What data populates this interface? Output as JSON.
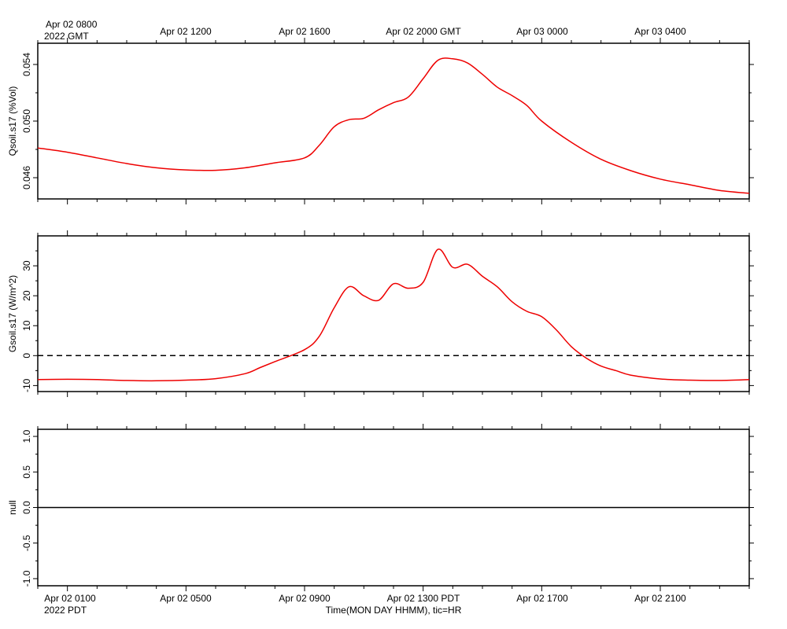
{
  "top_axis": {
    "first_label": [
      "Apr 02 0800",
      "2022 GMT"
    ],
    "labels": [
      "Apr 02 1200",
      "Apr 02 1600",
      "Apr 02 2000 GMT",
      "Apr 03 0000",
      "Apr 03 0400"
    ]
  },
  "bottom_axis": {
    "first_label": [
      "Apr 02 0100",
      "2022 PDT"
    ],
    "labels": [
      "Apr 02 0500",
      "Apr 02 0900",
      "Apr 02 1300 PDT",
      "Apr 02 1700",
      "Apr 02 2100"
    ],
    "title": "Time(MON DAY HHMM), tic=HR"
  },
  "colors": {
    "series": "#ee0000",
    "axis": "#000000",
    "zero_line": "#000000"
  },
  "chart_data": [
    {
      "type": "line",
      "ylabel": "Qsoil.s17 (%Vol)",
      "xlim": [
        0.0,
        24.0
      ],
      "ylim": [
        0.0445,
        0.0555
      ],
      "yticks": [
        "0.046",
        "0.050",
        "0.054"
      ],
      "yticks_values": [
        0.046,
        0.05,
        0.054
      ],
      "grid": false,
      "series": [
        {
          "x": [
            0.0,
            1.0,
            2.0,
            3.0,
            4.0,
            5.0,
            6.0,
            7.0,
            8.0,
            9.0,
            9.5,
            10.0,
            10.5,
            11.0,
            11.5,
            12.0,
            12.5,
            13.0,
            13.5,
            14.0,
            14.5,
            15.0,
            15.5,
            16.0,
            16.5,
            17.0,
            18.0,
            19.0,
            20.0,
            21.0,
            22.0,
            23.0,
            24.0
          ],
          "y": [
            0.0481,
            0.0478,
            0.0474,
            0.047,
            0.0467,
            0.04655,
            0.04652,
            0.0467,
            0.04705,
            0.0474,
            0.0483,
            0.0496,
            0.0501,
            0.0502,
            0.0508,
            0.0513,
            0.0517,
            0.053,
            0.0543,
            0.0544,
            0.0541,
            0.0533,
            0.0524,
            0.0518,
            0.0511,
            0.05,
            0.0485,
            0.0473,
            0.0465,
            0.0459,
            0.0455,
            0.0451,
            0.0449
          ]
        }
      ]
    },
    {
      "type": "line",
      "ylabel": "Gsoil.s17 (W/m^2)",
      "xlim": [
        0.0,
        24.0
      ],
      "ylim": [
        -12.0,
        40.0
      ],
      "yticks": [
        "-10",
        "0",
        "10",
        "20",
        "30"
      ],
      "yticks_values": [
        -10,
        0,
        10,
        20,
        30
      ],
      "reference_line": 0,
      "grid": false,
      "series": [
        {
          "x": [
            0.0,
            1.0,
            2.0,
            3.0,
            4.0,
            5.0,
            6.0,
            7.0,
            7.5,
            8.0,
            9.0,
            9.5,
            10.0,
            10.5,
            11.0,
            11.5,
            12.0,
            12.5,
            13.0,
            13.5,
            14.0,
            14.5,
            15.0,
            15.5,
            16.0,
            16.5,
            17.0,
            17.5,
            18.0,
            18.5,
            19.0,
            19.5,
            20.0,
            21.0,
            22.0,
            23.0,
            24.0
          ],
          "y": [
            -8.0,
            -7.9,
            -8.0,
            -8.3,
            -8.4,
            -8.2,
            -7.7,
            -6.0,
            -4.0,
            -2.0,
            2.0,
            6.5,
            16.0,
            23.0,
            20.0,
            18.5,
            24.0,
            22.5,
            24.5,
            35.5,
            29.5,
            30.5,
            26.5,
            23.0,
            18.0,
            14.8,
            13.0,
            8.5,
            3.0,
            -0.8,
            -3.5,
            -5.0,
            -6.5,
            -7.8,
            -8.2,
            -8.3,
            -8.0
          ]
        }
      ]
    },
    {
      "type": "line",
      "ylabel": "null",
      "xlim": [
        0.0,
        24.0
      ],
      "ylim": [
        -1.1,
        1.1
      ],
      "yticks": [
        "-1.0",
        "-0.5",
        "0.0",
        "0.5",
        "1.0"
      ],
      "yticks_values": [
        -1.0,
        -0.5,
        0.0,
        0.5,
        1.0
      ],
      "grid": false,
      "series": [
        {
          "x": [
            0.0,
            24.0
          ],
          "y": [
            0.0,
            0.0
          ]
        }
      ]
    }
  ]
}
